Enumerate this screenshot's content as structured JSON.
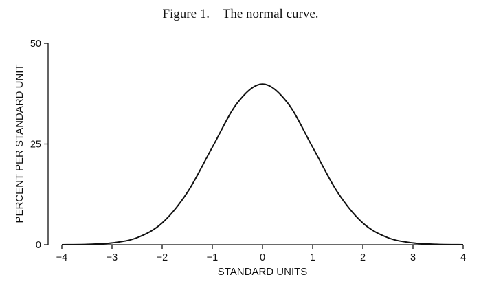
{
  "chart_data": {
    "type": "line",
    "title": "Figure 1.    The normal curve.",
    "xlabel": "STANDARD UNITS",
    "ylabel": "PERCENT PER STANDARD UNIT",
    "xlim": [
      -4,
      4
    ],
    "ylim": [
      0,
      50
    ],
    "xticks": [
      -4,
      -3,
      -2,
      -1,
      0,
      1,
      2,
      3,
      4
    ],
    "xtick_labels": [
      "−4",
      "−3",
      "−2",
      "−1",
      "0",
      "1",
      "2",
      "3",
      "4"
    ],
    "yticks": [
      0,
      25,
      50
    ],
    "ytick_labels": [
      "0",
      "25",
      "50"
    ],
    "grid": false,
    "legend": "none",
    "series": [
      {
        "x": [
          -4,
          -3.5,
          -3,
          -2.5,
          -2,
          -1.5,
          -1,
          -0.5,
          0,
          0.5,
          1,
          1.5,
          2,
          2.5,
          3,
          3.5,
          4
        ],
        "y": [
          0.01,
          0.09,
          0.44,
          1.75,
          5.4,
          12.95,
          24.2,
          35.21,
          39.89,
          35.21,
          24.2,
          12.95,
          5.4,
          1.75,
          0.44,
          0.09,
          0.01
        ]
      }
    ],
    "color": "#111111"
  }
}
